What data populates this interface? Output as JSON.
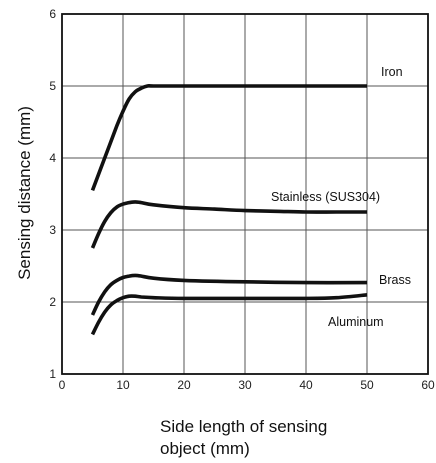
{
  "chart_data": {
    "type": "line",
    "title": "",
    "xlabel": "Side length of sensing object (mm)",
    "xlabel_lines": [
      "Side length of sensing",
      "object (mm)"
    ],
    "ylabel": "Sensing distance  (mm)",
    "xlim": [
      0,
      60
    ],
    "ylim": [
      1,
      6
    ],
    "x_ticks": [
      0,
      10,
      20,
      30,
      40,
      50,
      60
    ],
    "x_tick_labels": [
      "0",
      "10",
      "20",
      "30",
      "40",
      "50",
      "60"
    ],
    "y_ticks": [
      1,
      2,
      3,
      4,
      5,
      6
    ],
    "y_tick_labels": [
      "1",
      "2",
      "3",
      "4",
      "5",
      "6"
    ],
    "grid": true,
    "series": [
      {
        "name": "Iron",
        "x": [
          5,
          7,
          9,
          10,
          11,
          12,
          13,
          14,
          15,
          20,
          30,
          40,
          50
        ],
        "y": [
          3.55,
          4.0,
          4.45,
          4.65,
          4.82,
          4.92,
          4.97,
          5.0,
          5.0,
          5.0,
          5.0,
          5.0,
          5.0
        ]
      },
      {
        "name": "Stainless (SUS304)",
        "x": [
          5,
          6,
          7,
          8,
          9,
          10,
          11,
          12,
          13,
          15,
          20,
          25,
          30,
          35,
          40,
          45,
          50
        ],
        "y": [
          2.75,
          2.95,
          3.12,
          3.24,
          3.32,
          3.36,
          3.38,
          3.39,
          3.38,
          3.35,
          3.31,
          3.29,
          3.27,
          3.26,
          3.25,
          3.25,
          3.25
        ]
      },
      {
        "name": "Brass",
        "x": [
          5,
          6,
          7,
          8,
          9,
          10,
          11,
          12,
          13,
          15,
          20,
          30,
          40,
          50
        ],
        "y": [
          1.82,
          2.0,
          2.14,
          2.24,
          2.3,
          2.34,
          2.36,
          2.37,
          2.36,
          2.33,
          2.3,
          2.28,
          2.27,
          2.27
        ]
      },
      {
        "name": "Aluminum",
        "x": [
          5,
          6,
          7,
          8,
          9,
          10,
          11,
          12,
          13,
          15,
          20,
          30,
          40,
          45,
          50
        ],
        "y": [
          1.55,
          1.72,
          1.86,
          1.96,
          2.02,
          2.06,
          2.08,
          2.08,
          2.07,
          2.06,
          2.05,
          2.05,
          2.05,
          2.06,
          2.1
        ]
      }
    ],
    "annotations": [
      {
        "text": "Iron",
        "series": "Iron"
      },
      {
        "text": "Stainless (SUS304)",
        "series": "Stainless (SUS304)"
      },
      {
        "text": "Brass",
        "series": "Brass"
      },
      {
        "text": "Aluminum",
        "series": "Aluminum"
      }
    ]
  }
}
